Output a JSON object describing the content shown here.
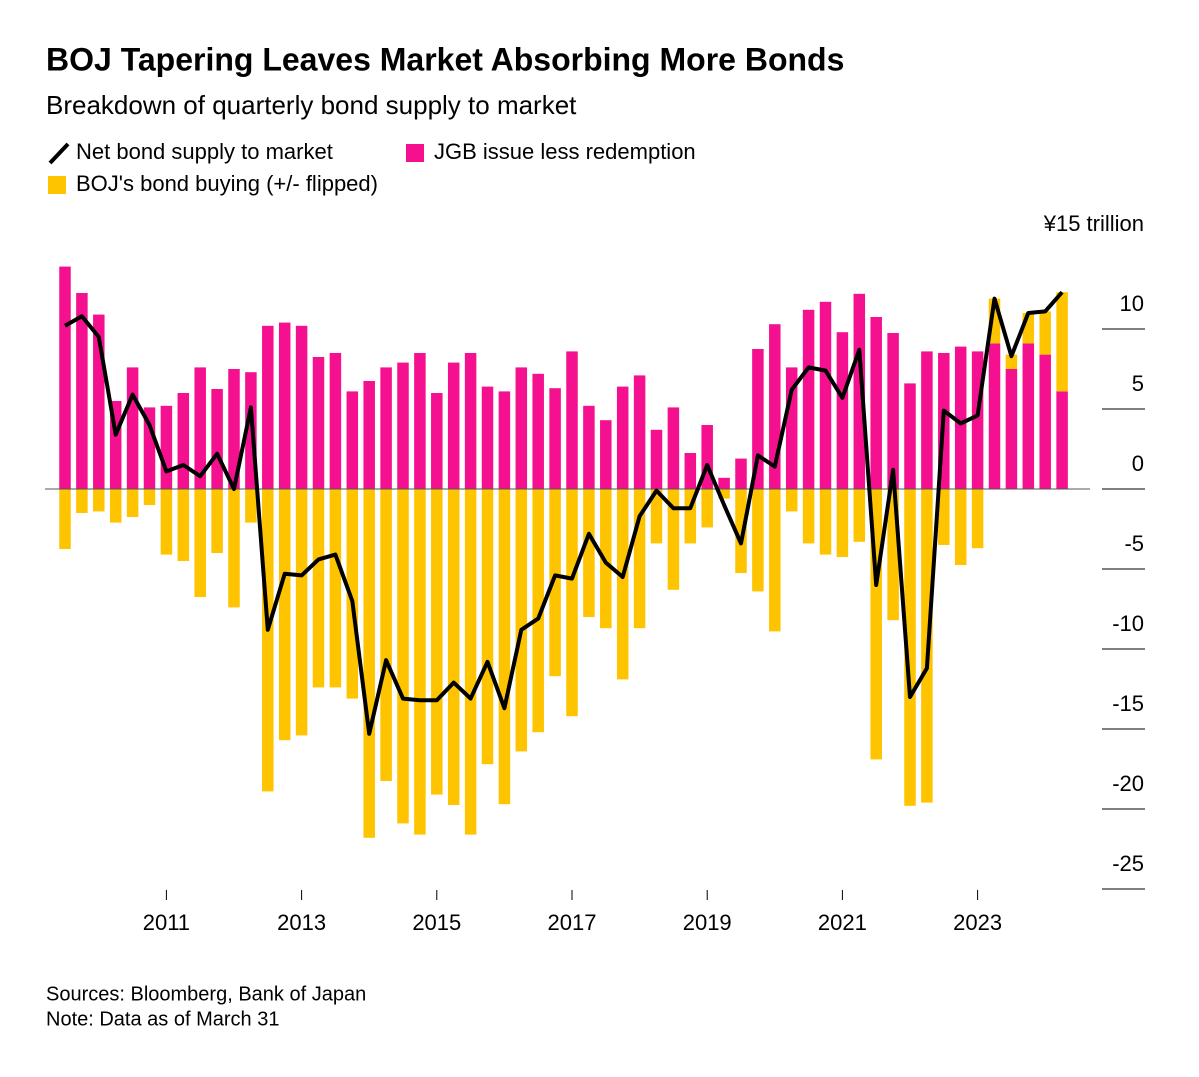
{
  "chart_data": {
    "type": "bar",
    "title": "BOJ Tapering Leaves Market Absorbing More Bonds",
    "subtitle": "Breakdown of quarterly bond supply to market",
    "categories": [
      null,
      null,
      null,
      null,
      null,
      null,
      "2011",
      null,
      null,
      null,
      null,
      null,
      null,
      null,
      "2013",
      null,
      null,
      null,
      null,
      null,
      null,
      null,
      "2015",
      null,
      null,
      null,
      null,
      null,
      null,
      null,
      "2017",
      null,
      null,
      null,
      null,
      null,
      null,
      null,
      "2019",
      null,
      null,
      null,
      null,
      null,
      null,
      null,
      "2021",
      null,
      null,
      null,
      null,
      null,
      null,
      null,
      "2023",
      null,
      null,
      null,
      null,
      null
    ],
    "series": [
      {
        "name": "Net bond supply to market",
        "type": "line",
        "color": "#000000",
        "values": [
          10.2,
          10.8,
          9.5,
          3.4,
          5.9,
          4,
          1.1,
          1.5,
          0.8,
          2.2,
          0,
          5.1,
          -8.8,
          -5.3,
          -5.4,
          -4.4,
          -4.1,
          -7,
          -15.3,
          -10.7,
          -13.1,
          -13.2,
          -13.2,
          -12.1,
          -13.1,
          -10.8,
          -13.7,
          -8.8,
          -8.1,
          -5.4,
          -5.6,
          -2.8,
          -4.6,
          -5.5,
          -1.7,
          -0.1,
          -1.2,
          -1.2,
          1.5,
          -1,
          -3.4,
          2.1,
          1.4,
          6.2,
          7.6,
          7.4,
          5.7,
          8.7,
          -6,
          1.2,
          -13,
          -11.2,
          4.9,
          4.1,
          4.6,
          11.9,
          8.3,
          11,
          11.1,
          12.3
        ]
      },
      {
        "name": "JGB issue less redemption",
        "type": "bar",
        "color": "#f5108f",
        "values": [
          13.9,
          12.25,
          10.9,
          5.5,
          7.6,
          5.1,
          5.2,
          6,
          7.6,
          6.25,
          7.5,
          7.3,
          10.2,
          10.4,
          10.2,
          8.25,
          8.5,
          6.1,
          6.75,
          7.6,
          7.9,
          8.5,
          6,
          7.9,
          8.5,
          6.4,
          6.1,
          7.6,
          7.2,
          6.3,
          8.6,
          5.2,
          4.3,
          6.4,
          7.1,
          3.7,
          5.1,
          2.25,
          4,
          0.7,
          1.9,
          8.75,
          10.3,
          7.6,
          11.2,
          11.7,
          9.8,
          12.2,
          10.75,
          9.75,
          6.6,
          8.6,
          8.5,
          8.9,
          8.6,
          9.1,
          7.5,
          9.1,
          8.4,
          6.1
        ]
      },
      {
        "name": "BOJ's bond buying (+/- flipped)",
        "type": "bar",
        "color": "#ffc400",
        "values": [
          -3.75,
          -1.5,
          -1.4,
          -2.1,
          -1.75,
          -1,
          -4.1,
          -4.5,
          -6.75,
          -4,
          -7.4,
          -2.1,
          -18.9,
          -15.7,
          -15.4,
          -12.4,
          -12.4,
          -13.1,
          -21.8,
          -18.25,
          -20.9,
          -21.6,
          -19.1,
          -19.75,
          -21.6,
          -17.2,
          -19.7,
          -16.4,
          -15.2,
          -11.7,
          -14.2,
          -8,
          -8.7,
          -11.9,
          -8.7,
          -3.4,
          -6.3,
          -3.4,
          -2.4,
          -0.6,
          -5.25,
          -6.4,
          -8.9,
          -1.4,
          -3.4,
          -4.1,
          -4.25,
          -3.3,
          -16.9,
          -8.2,
          -19.8,
          -19.6,
          -3.5,
          -4.75,
          -3.7,
          2.8,
          0.9,
          1.9,
          2.7,
          6.2
        ]
      }
    ],
    "ylim": [
      -25,
      15
    ],
    "yticks": [
      -25,
      -20,
      -15,
      -10,
      -5,
      0,
      5,
      10,
      {
        "value": 15,
        "label": "¥15 trillion"
      }
    ],
    "source": "Sources: Bloomberg, Bank of Japan",
    "note": "Note: Data as of March 31"
  }
}
